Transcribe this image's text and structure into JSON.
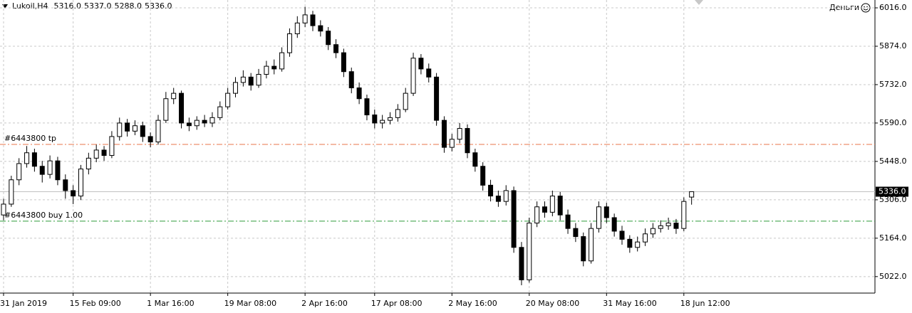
{
  "chart_data": {
    "type": "candlestick",
    "title": "Lukoil,H4",
    "header_values": [
      "5316.0",
      "5337.0",
      "5288.0",
      "5336.0"
    ],
    "expert": "Деньги",
    "categories": [
      "31 Jan 2019",
      null,
      null,
      null,
      null,
      null,
      null,
      null,
      null,
      "15 Feb 09:00",
      null,
      null,
      null,
      null,
      null,
      null,
      null,
      null,
      null,
      "1 Mar 16:00",
      null,
      null,
      null,
      null,
      null,
      null,
      null,
      null,
      null,
      "19 Mar 08:00",
      null,
      null,
      null,
      null,
      null,
      null,
      null,
      null,
      null,
      "2 Apr 16:00",
      null,
      null,
      null,
      null,
      null,
      null,
      null,
      null,
      "17 Apr 08:00",
      null,
      null,
      null,
      null,
      null,
      null,
      null,
      null,
      null,
      "2 May 16:00",
      null,
      null,
      null,
      null,
      null,
      null,
      null,
      null,
      null,
      "20 May 08:00",
      null,
      null,
      null,
      null,
      null,
      null,
      null,
      null,
      null,
      "31 May 16:00",
      null,
      null,
      null,
      null,
      null,
      null,
      null,
      null,
      null,
      "18 Jun 12:00",
      null
    ],
    "open": [
      5250,
      5290,
      5380,
      5440,
      5480,
      5430,
      5400,
      5450,
      5380,
      5340,
      5320,
      5420,
      5460,
      5490,
      5470,
      5540,
      5590,
      5560,
      5580,
      5540,
      5520,
      5600,
      5680,
      5700,
      5590,
      5580,
      5600,
      5590,
      5610,
      5650,
      5700,
      5740,
      5760,
      5730,
      5770,
      5800,
      5790,
      5850,
      5920,
      5960,
      5990,
      5950,
      5930,
      5880,
      5850,
      5780,
      5720,
      5680,
      5620,
      5590,
      5600,
      5610,
      5640,
      5700,
      5830,
      5790,
      5760,
      5600,
      5500,
      5530,
      5570,
      5480,
      5430,
      5360,
      5320,
      5300,
      5340,
      5130,
      5010,
      5220,
      5280,
      5260,
      5320,
      5250,
      5200,
      5170,
      5080,
      5200,
      5280,
      5240,
      5190,
      5160,
      5130,
      5150,
      5180,
      5200,
      5210,
      5220,
      5200,
      5316
    ],
    "high": [
      5310,
      5395,
      5460,
      5505,
      5495,
      5450,
      5470,
      5465,
      5400,
      5360,
      5435,
      5480,
      5510,
      5505,
      5560,
      5610,
      5605,
      5600,
      5595,
      5555,
      5620,
      5705,
      5720,
      5710,
      5610,
      5615,
      5620,
      5630,
      5670,
      5720,
      5760,
      5785,
      5775,
      5790,
      5820,
      5825,
      5870,
      5940,
      5985,
      6020,
      6005,
      5970,
      5945,
      5900,
      5865,
      5795,
      5740,
      5695,
      5640,
      5620,
      5630,
      5660,
      5720,
      5850,
      5845,
      5810,
      5775,
      5615,
      5550,
      5590,
      5585,
      5495,
      5445,
      5380,
      5340,
      5360,
      5355,
      5150,
      5240,
      5300,
      5300,
      5340,
      5335,
      5270,
      5220,
      5185,
      5220,
      5300,
      5295,
      5255,
      5210,
      5175,
      5170,
      5200,
      5220,
      5230,
      5240,
      5235,
      5315,
      5337
    ],
    "low": [
      5230,
      5280,
      5360,
      5425,
      5410,
      5370,
      5385,
      5360,
      5310,
      5290,
      5305,
      5400,
      5445,
      5450,
      5460,
      5525,
      5540,
      5545,
      5520,
      5500,
      5510,
      5590,
      5660,
      5570,
      5560,
      5565,
      5575,
      5575,
      5600,
      5640,
      5685,
      5725,
      5710,
      5720,
      5755,
      5770,
      5780,
      5835,
      5905,
      5945,
      5930,
      5910,
      5860,
      5830,
      5760,
      5700,
      5660,
      5600,
      5570,
      5570,
      5585,
      5595,
      5630,
      5690,
      5770,
      5740,
      5580,
      5480,
      5485,
      5515,
      5460,
      5410,
      5340,
      5300,
      5280,
      5285,
      5110,
      4990,
      5000,
      5205,
      5240,
      5245,
      5230,
      5180,
      5150,
      5060,
      5070,
      5185,
      5220,
      5170,
      5140,
      5110,
      5115,
      5135,
      5165,
      5185,
      5195,
      5180,
      5190,
      5288
    ],
    "close": [
      5290,
      5380,
      5440,
      5480,
      5430,
      5400,
      5450,
      5380,
      5340,
      5320,
      5420,
      5460,
      5490,
      5470,
      5540,
      5590,
      5560,
      5580,
      5540,
      5520,
      5600,
      5680,
      5700,
      5590,
      5580,
      5600,
      5590,
      5610,
      5650,
      5700,
      5740,
      5760,
      5730,
      5770,
      5800,
      5790,
      5850,
      5920,
      5960,
      5990,
      5950,
      5930,
      5880,
      5850,
      5780,
      5720,
      5680,
      5620,
      5590,
      5600,
      5610,
      5640,
      5700,
      5830,
      5790,
      5760,
      5600,
      5500,
      5530,
      5570,
      5480,
      5430,
      5360,
      5320,
      5300,
      5340,
      5130,
      5010,
      5220,
      5280,
      5260,
      5320,
      5250,
      5200,
      5170,
      5080,
      5200,
      5280,
      5240,
      5190,
      5160,
      5130,
      5150,
      5180,
      5200,
      5210,
      5220,
      5200,
      5300,
      5336
    ],
    "up_color": "#ffffff",
    "down_color": "#000000",
    "outline_color": "#000000",
    "ylim": [
      4961,
      6045
    ],
    "yticks": [
      {
        "value": 6016,
        "label": "6016.0"
      },
      {
        "value": 5874,
        "label": "5874.0"
      },
      {
        "value": 5732,
        "label": "5732.0"
      },
      {
        "value": 5590,
        "label": "5590.0"
      },
      {
        "value": 5448,
        "label": "5448.0"
      },
      {
        "value": 5306,
        "label": "5306.0"
      },
      {
        "value": 5164,
        "label": "5164.0"
      },
      {
        "value": 5022,
        "label": "5022.0"
      }
    ],
    "grid": true,
    "levels": [
      {
        "label": "#6443800 tp",
        "value": 5511,
        "color": "#e8744a"
      },
      {
        "label": "#6443800 buy 1.00",
        "value": 5227,
        "color": "#2e9a3a"
      }
    ],
    "bid": {
      "value": 5336,
      "label": "5336.0"
    }
  }
}
